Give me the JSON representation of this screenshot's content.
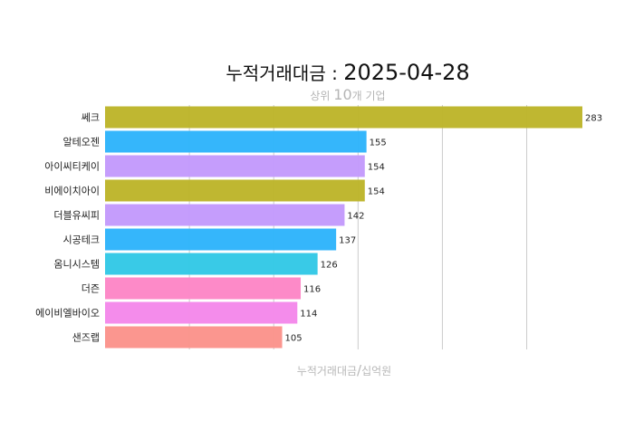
{
  "chart_data": {
    "type": "bar",
    "orientation": "horizontal",
    "title": {
      "prefix": "누적거래대금",
      "separator": " : ",
      "date": "2025-04-28"
    },
    "subtitle": {
      "before": "상위 ",
      "number": "10",
      "after": "개 기업"
    },
    "xlabel": {
      "left": "누적거래대금",
      "slash": "/",
      "right": "십억원"
    },
    "xlim": [
      0,
      283
    ],
    "grid_step": 50,
    "grid": true,
    "categories": [
      "쎄크",
      "알테오젠",
      "아이씨티케이",
      "비에이치아이",
      "더블유씨피",
      "시공테크",
      "옴니시스템",
      "더즌",
      "에이비엘바이오",
      "샌즈랩"
    ],
    "values": [
      283,
      155,
      154,
      154,
      142,
      137,
      126,
      116,
      114,
      105
    ],
    "colors": [
      "#bdb52a",
      "#2eb4fb",
      "#c39afc",
      "#bdb52a",
      "#c39afc",
      "#2eb4fb",
      "#33c8e6",
      "#fd86c6",
      "#f488ea",
      "#fb938b"
    ]
  }
}
